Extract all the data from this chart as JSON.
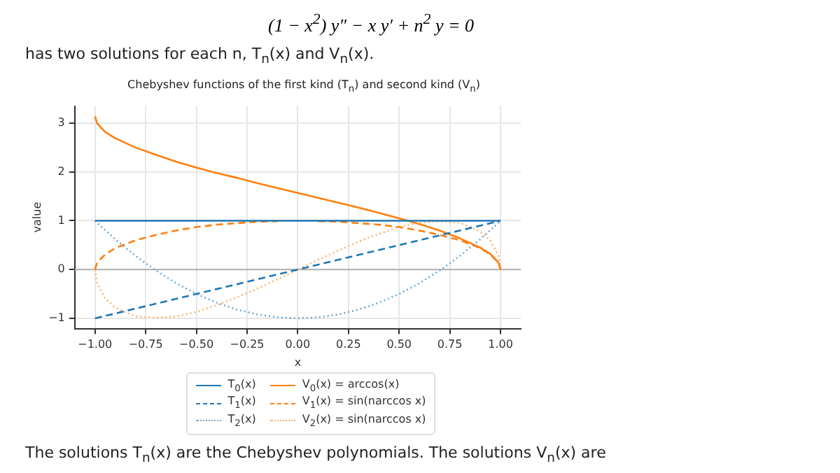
{
  "chart_data": {
    "type": "line",
    "title": "Chebyshev functions of the first kind (T$_{n}$) and second kind (V$_{n}$)",
    "xlabel": "x",
    "ylabel": "value",
    "annotations": [
      "(1 − x$^{2}$) y″ − x y′ + n$^{2}$ y = 0",
      "has two solutions for each n, T$_{n}$(x) and V$_{n}$(x).",
      "The solutions T$_{n}$(x) are the Chebyshev polynomials. The solutions V$_{n}$(x) are"
    ],
    "x": [
      -1,
      -0.99,
      -0.95,
      -0.9,
      -0.8,
      -0.7,
      -0.6,
      -0.5,
      -0.4,
      -0.3,
      -0.2,
      -0.1,
      0,
      0.1,
      0.2,
      0.3,
      0.4,
      0.5,
      0.6,
      0.7,
      0.8,
      0.9,
      0.95,
      0.99,
      1
    ],
    "series": [
      {
        "name": "T$_{0}$(x)",
        "color": "#1f77b4",
        "line_style": "solid",
        "values": [
          1,
          1,
          1,
          1,
          1,
          1,
          1,
          1,
          1,
          1,
          1,
          1,
          1,
          1,
          1,
          1,
          1,
          1,
          1,
          1,
          1,
          1,
          1,
          1,
          1
        ]
      },
      {
        "name": "T$_{1}$(x)",
        "color": "#1f77b4",
        "line_style": "dashed",
        "values": [
          -1,
          -0.99,
          -0.95,
          -0.9,
          -0.8,
          -0.7,
          -0.6,
          -0.5,
          -0.4,
          -0.3,
          -0.2,
          -0.1,
          0,
          0.1,
          0.2,
          0.3,
          0.4,
          0.5,
          0.6,
          0.7,
          0.8,
          0.9,
          0.95,
          0.99,
          1
        ]
      },
      {
        "name": "T$_{2}$(x)",
        "color": "#6fa8d6",
        "line_style": "dotted",
        "values": [
          1,
          0.96,
          0.81,
          0.62,
          0.28,
          -0.02,
          -0.28,
          -0.5,
          -0.68,
          -0.82,
          -0.92,
          -0.98,
          -1,
          -0.98,
          -0.92,
          -0.82,
          -0.68,
          -0.5,
          -0.28,
          -0.02,
          0.28,
          0.62,
          0.81,
          0.96,
          1
        ]
      },
      {
        "name": "V$_{0}$(x) = arccos(x)",
        "color": "#ff7f0e",
        "line_style": "solid",
        "values": [
          3.14,
          3.0,
          2.82,
          2.69,
          2.5,
          2.35,
          2.21,
          2.09,
          1.98,
          1.88,
          1.77,
          1.67,
          1.57,
          1.47,
          1.37,
          1.27,
          1.16,
          1.05,
          0.93,
          0.8,
          0.64,
          0.45,
          0.32,
          0.14,
          0
        ]
      },
      {
        "name": "V$_{1}$(x) = sin(narccos x)",
        "color": "#ff7f0e",
        "line_style": "dashed",
        "values": [
          0,
          0.14,
          0.31,
          0.44,
          0.6,
          0.71,
          0.8,
          0.87,
          0.92,
          0.95,
          0.98,
          0.99,
          null,
          0.99,
          0.98,
          0.95,
          0.92,
          0.87,
          0.8,
          0.71,
          0.6,
          0.44,
          0.31,
          0.14,
          0
        ]
      },
      {
        "name": "V$_{2}$(x) = sin(narccos x)",
        "color": "#ffb26e",
        "line_style": "dotted",
        "values": [
          0,
          -0.28,
          -0.59,
          -0.78,
          -0.96,
          -0.99,
          -0.96,
          -0.87,
          -0.73,
          -0.57,
          -0.39,
          -0.2,
          0,
          0.2,
          0.39,
          0.57,
          0.73,
          0.87,
          0.96,
          0.99,
          0.96,
          0.78,
          0.59,
          0.28,
          0
        ]
      }
    ],
    "xlim": [
      -1.1,
      1.1
    ],
    "xticks": [
      {
        "value": -1,
        "label": "−1.00"
      },
      {
        "value": -0.75,
        "label": "−0.75"
      },
      {
        "value": -0.5,
        "label": "−0.50"
      },
      {
        "value": -0.25,
        "label": "−0.25"
      },
      {
        "value": 0,
        "label": "0.00"
      },
      {
        "value": 0.25,
        "label": "0.25"
      },
      {
        "value": 0.5,
        "label": "0.50"
      },
      {
        "value": 0.75,
        "label": "0.75"
      },
      {
        "value": 1,
        "label": "1.00"
      }
    ],
    "ylim": [
      -1.21,
      3.35
    ],
    "yticks": [
      {
        "value": -1,
        "label": "−1"
      },
      0,
      1,
      2,
      3
    ],
    "ref_lines": [
      {
        "axis": "y",
        "value": 0,
        "color": "#b0b0b0"
      }
    ],
    "grid": true,
    "legend": "bottom"
  }
}
